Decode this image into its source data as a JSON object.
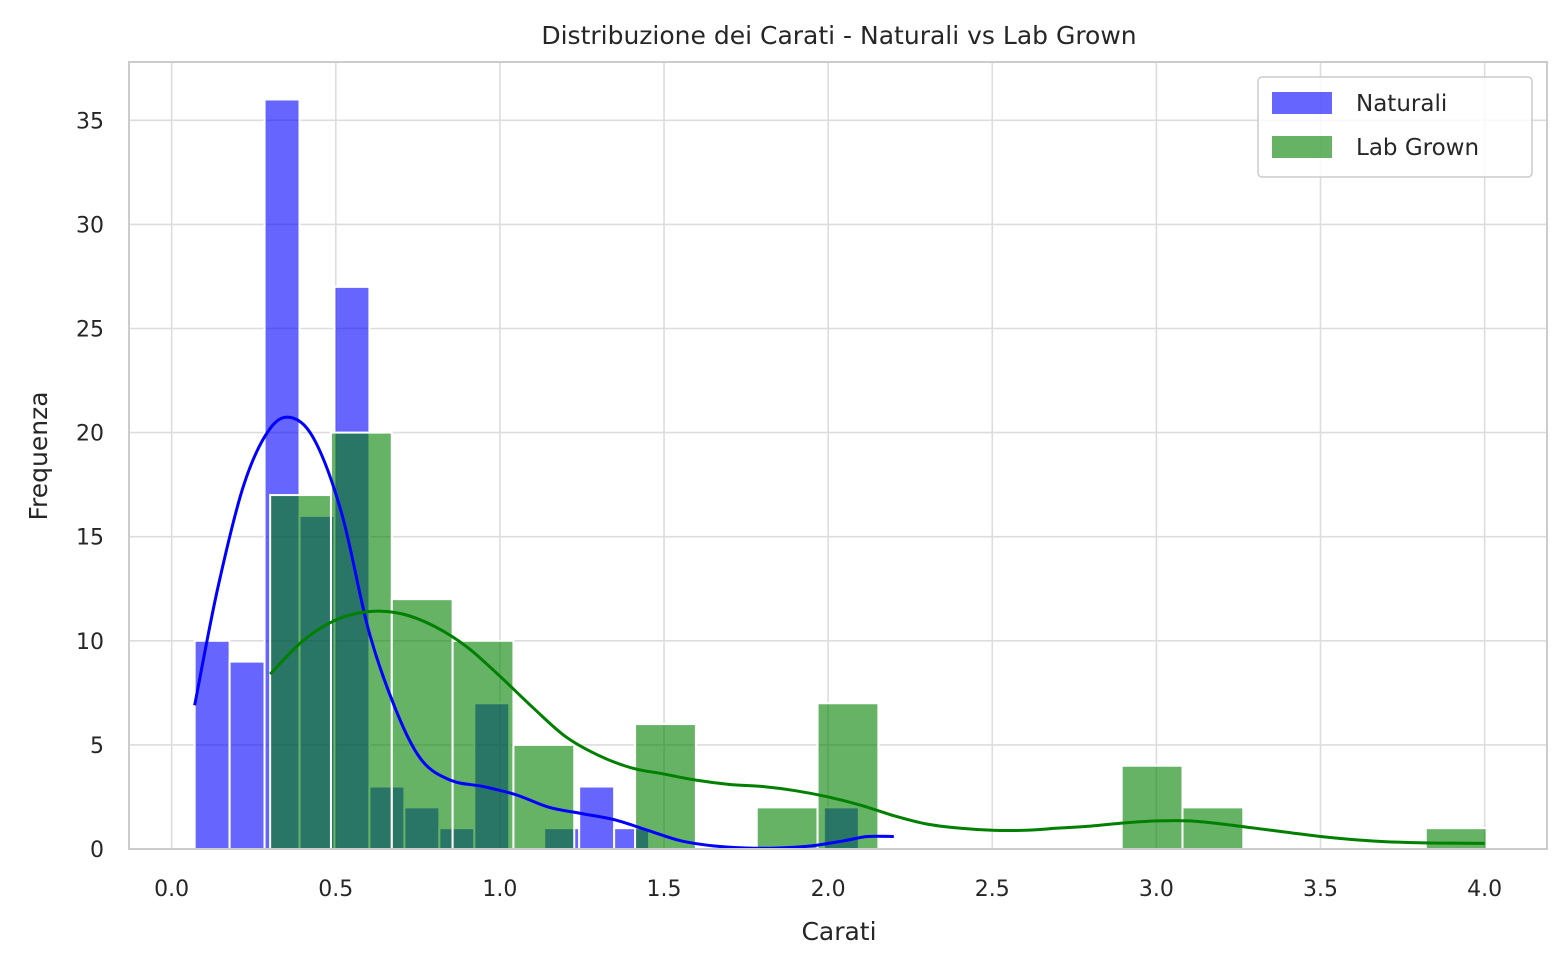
{
  "chart_data": {
    "type": "bar",
    "title": "Distribuzione dei Carati - Naturali vs Lab Grown",
    "xlabel": "Carati",
    "ylabel": "Frequenza",
    "xlim": [
      -0.13,
      4.19
    ],
    "ylim": [
      0,
      37.8
    ],
    "x_ticks": [
      0.0,
      0.5,
      1.0,
      1.5,
      2.0,
      2.5,
      3.0,
      3.5,
      4.0
    ],
    "x_tick_labels": [
      "0.0",
      "0.5",
      "1.0",
      "1.5",
      "2.0",
      "2.5",
      "3.0",
      "3.5",
      "4.0"
    ],
    "y_ticks": [
      0,
      5,
      10,
      15,
      20,
      25,
      30,
      35
    ],
    "y_tick_labels": [
      "0",
      "5",
      "10",
      "15",
      "20",
      "25",
      "30",
      "35"
    ],
    "grid": true,
    "legend_position": "top-right",
    "series": [
      {
        "name": "Naturali",
        "color": "#0000ff",
        "bin_start": 0.07,
        "bin_width": 0.1065,
        "counts": [
          10,
          9,
          36,
          16,
          27,
          3,
          2,
          1,
          7,
          0,
          1,
          3,
          1,
          0,
          0,
          0,
          0,
          0,
          2,
          0
        ],
        "kde": [
          [
            0.07,
            6.9
          ],
          [
            0.14,
            12.5
          ],
          [
            0.22,
            17.5
          ],
          [
            0.3,
            20.2
          ],
          [
            0.37,
            20.7
          ],
          [
            0.44,
            19.5
          ],
          [
            0.52,
            16.0
          ],
          [
            0.6,
            10.5
          ],
          [
            0.68,
            6.8
          ],
          [
            0.76,
            4.3
          ],
          [
            0.85,
            3.3
          ],
          [
            0.95,
            3.0
          ],
          [
            1.05,
            2.6
          ],
          [
            1.15,
            2.0
          ],
          [
            1.25,
            1.7
          ],
          [
            1.35,
            1.4
          ],
          [
            1.45,
            0.9
          ],
          [
            1.55,
            0.4
          ],
          [
            1.65,
            0.15
          ],
          [
            1.75,
            0.05
          ],
          [
            1.85,
            0.05
          ],
          [
            1.95,
            0.15
          ],
          [
            2.05,
            0.4
          ],
          [
            2.12,
            0.6
          ],
          [
            2.2,
            0.6
          ]
        ]
      },
      {
        "name": "Lab Grown",
        "color": "#008000",
        "bin_start": 0.3,
        "bin_width": 0.1853,
        "counts": [
          17,
          20,
          12,
          10,
          5,
          0,
          6,
          0,
          2,
          7,
          0,
          0,
          0,
          0,
          4,
          2,
          0,
          0,
          0,
          1
        ],
        "kde": [
          [
            0.3,
            8.4
          ],
          [
            0.4,
            10.0
          ],
          [
            0.5,
            11.0
          ],
          [
            0.6,
            11.4
          ],
          [
            0.7,
            11.3
          ],
          [
            0.8,
            10.7
          ],
          [
            0.9,
            9.7
          ],
          [
            1.0,
            8.3
          ],
          [
            1.1,
            6.8
          ],
          [
            1.2,
            5.4
          ],
          [
            1.3,
            4.5
          ],
          [
            1.4,
            3.9
          ],
          [
            1.5,
            3.6
          ],
          [
            1.6,
            3.3
          ],
          [
            1.7,
            3.1
          ],
          [
            1.8,
            3.0
          ],
          [
            1.9,
            2.8
          ],
          [
            2.0,
            2.5
          ],
          [
            2.1,
            2.1
          ],
          [
            2.2,
            1.6
          ],
          [
            2.3,
            1.2
          ],
          [
            2.4,
            1.0
          ],
          [
            2.5,
            0.9
          ],
          [
            2.6,
            0.9
          ],
          [
            2.7,
            1.0
          ],
          [
            2.8,
            1.1
          ],
          [
            2.9,
            1.25
          ],
          [
            3.0,
            1.35
          ],
          [
            3.1,
            1.35
          ],
          [
            3.2,
            1.2
          ],
          [
            3.3,
            1.0
          ],
          [
            3.4,
            0.8
          ],
          [
            3.5,
            0.6
          ],
          [
            3.6,
            0.45
          ],
          [
            3.7,
            0.35
          ],
          [
            3.8,
            0.3
          ],
          [
            3.9,
            0.28
          ],
          [
            4.0,
            0.27
          ]
        ]
      }
    ]
  }
}
